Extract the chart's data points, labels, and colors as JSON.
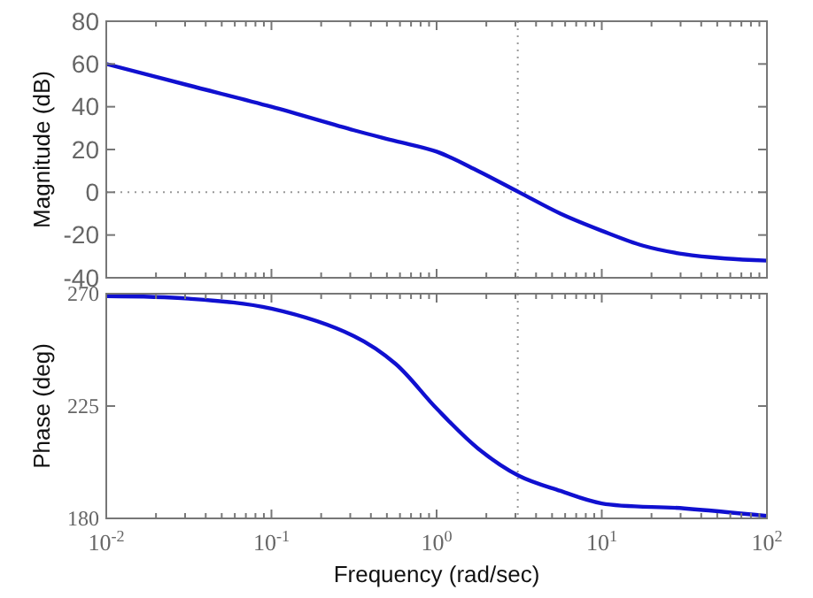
{
  "chart_data": [
    {
      "type": "line",
      "ylabel": "Magnitude (dB)",
      "log": "x",
      "xlim": [
        0.01,
        100
      ],
      "ylim": [
        -40,
        80
      ],
      "yticks": [
        -40,
        -20,
        0,
        20,
        40,
        60,
        80
      ],
      "tick_labels": "y",
      "line_style": "solid",
      "grid": false,
      "xticks": [
        0.01,
        0.1,
        1,
        10,
        100
      ],
      "x": [
        0.01,
        0.0316,
        0.1,
        0.316,
        0.562,
        1,
        1.78,
        3.16,
        5.62,
        10,
        17.8,
        31.6,
        56.2,
        100
      ],
      "series": [
        {
          "color": "#1010d0",
          "values": [
            60,
            50,
            40,
            29,
            24,
            19,
            10,
            0,
            -10,
            -18,
            -25,
            -29,
            -31,
            -32
          ]
        }
      ],
      "ref_lines": [
        {
          "axis": "y",
          "value": 0,
          "line_style": "dotted",
          "color": "#999999"
        },
        {
          "axis": "x",
          "value": 3.1,
          "line_style": "dotted",
          "color": "#999999"
        }
      ]
    },
    {
      "type": "line",
      "ylabel": "Phase (deg)",
      "xlabel": "Frequency  (rad/sec)",
      "log": "x",
      "xlim": [
        0.01,
        100
      ],
      "ylim": [
        180,
        270
      ],
      "yticks": [
        180,
        225,
        270
      ],
      "line_style": "solid",
      "grid": false,
      "xticks": [
        {
          "value": 0.01,
          "label": "10$^{-2}$"
        },
        {
          "value": 0.1,
          "label": "10$^{-1}$"
        },
        {
          "value": 1,
          "label": "10$^{0}$"
        },
        {
          "value": 10,
          "label": "10$^{1}$"
        },
        {
          "value": 100,
          "label": "10$^{2}$"
        }
      ],
      "x": [
        0.01,
        0.0316,
        0.1,
        0.316,
        0.562,
        1,
        1.78,
        3.16,
        5.62,
        10,
        31.6,
        100
      ],
      "series": [
        {
          "color": "#1010d0",
          "values": [
            269,
            268,
            264,
            253,
            242,
            224,
            208,
            197,
            191,
            186,
            184,
            181
          ]
        }
      ],
      "ref_lines": [
        {
          "axis": "x",
          "value": 3.1,
          "line_style": "dotted",
          "color": "#999999"
        }
      ]
    }
  ]
}
